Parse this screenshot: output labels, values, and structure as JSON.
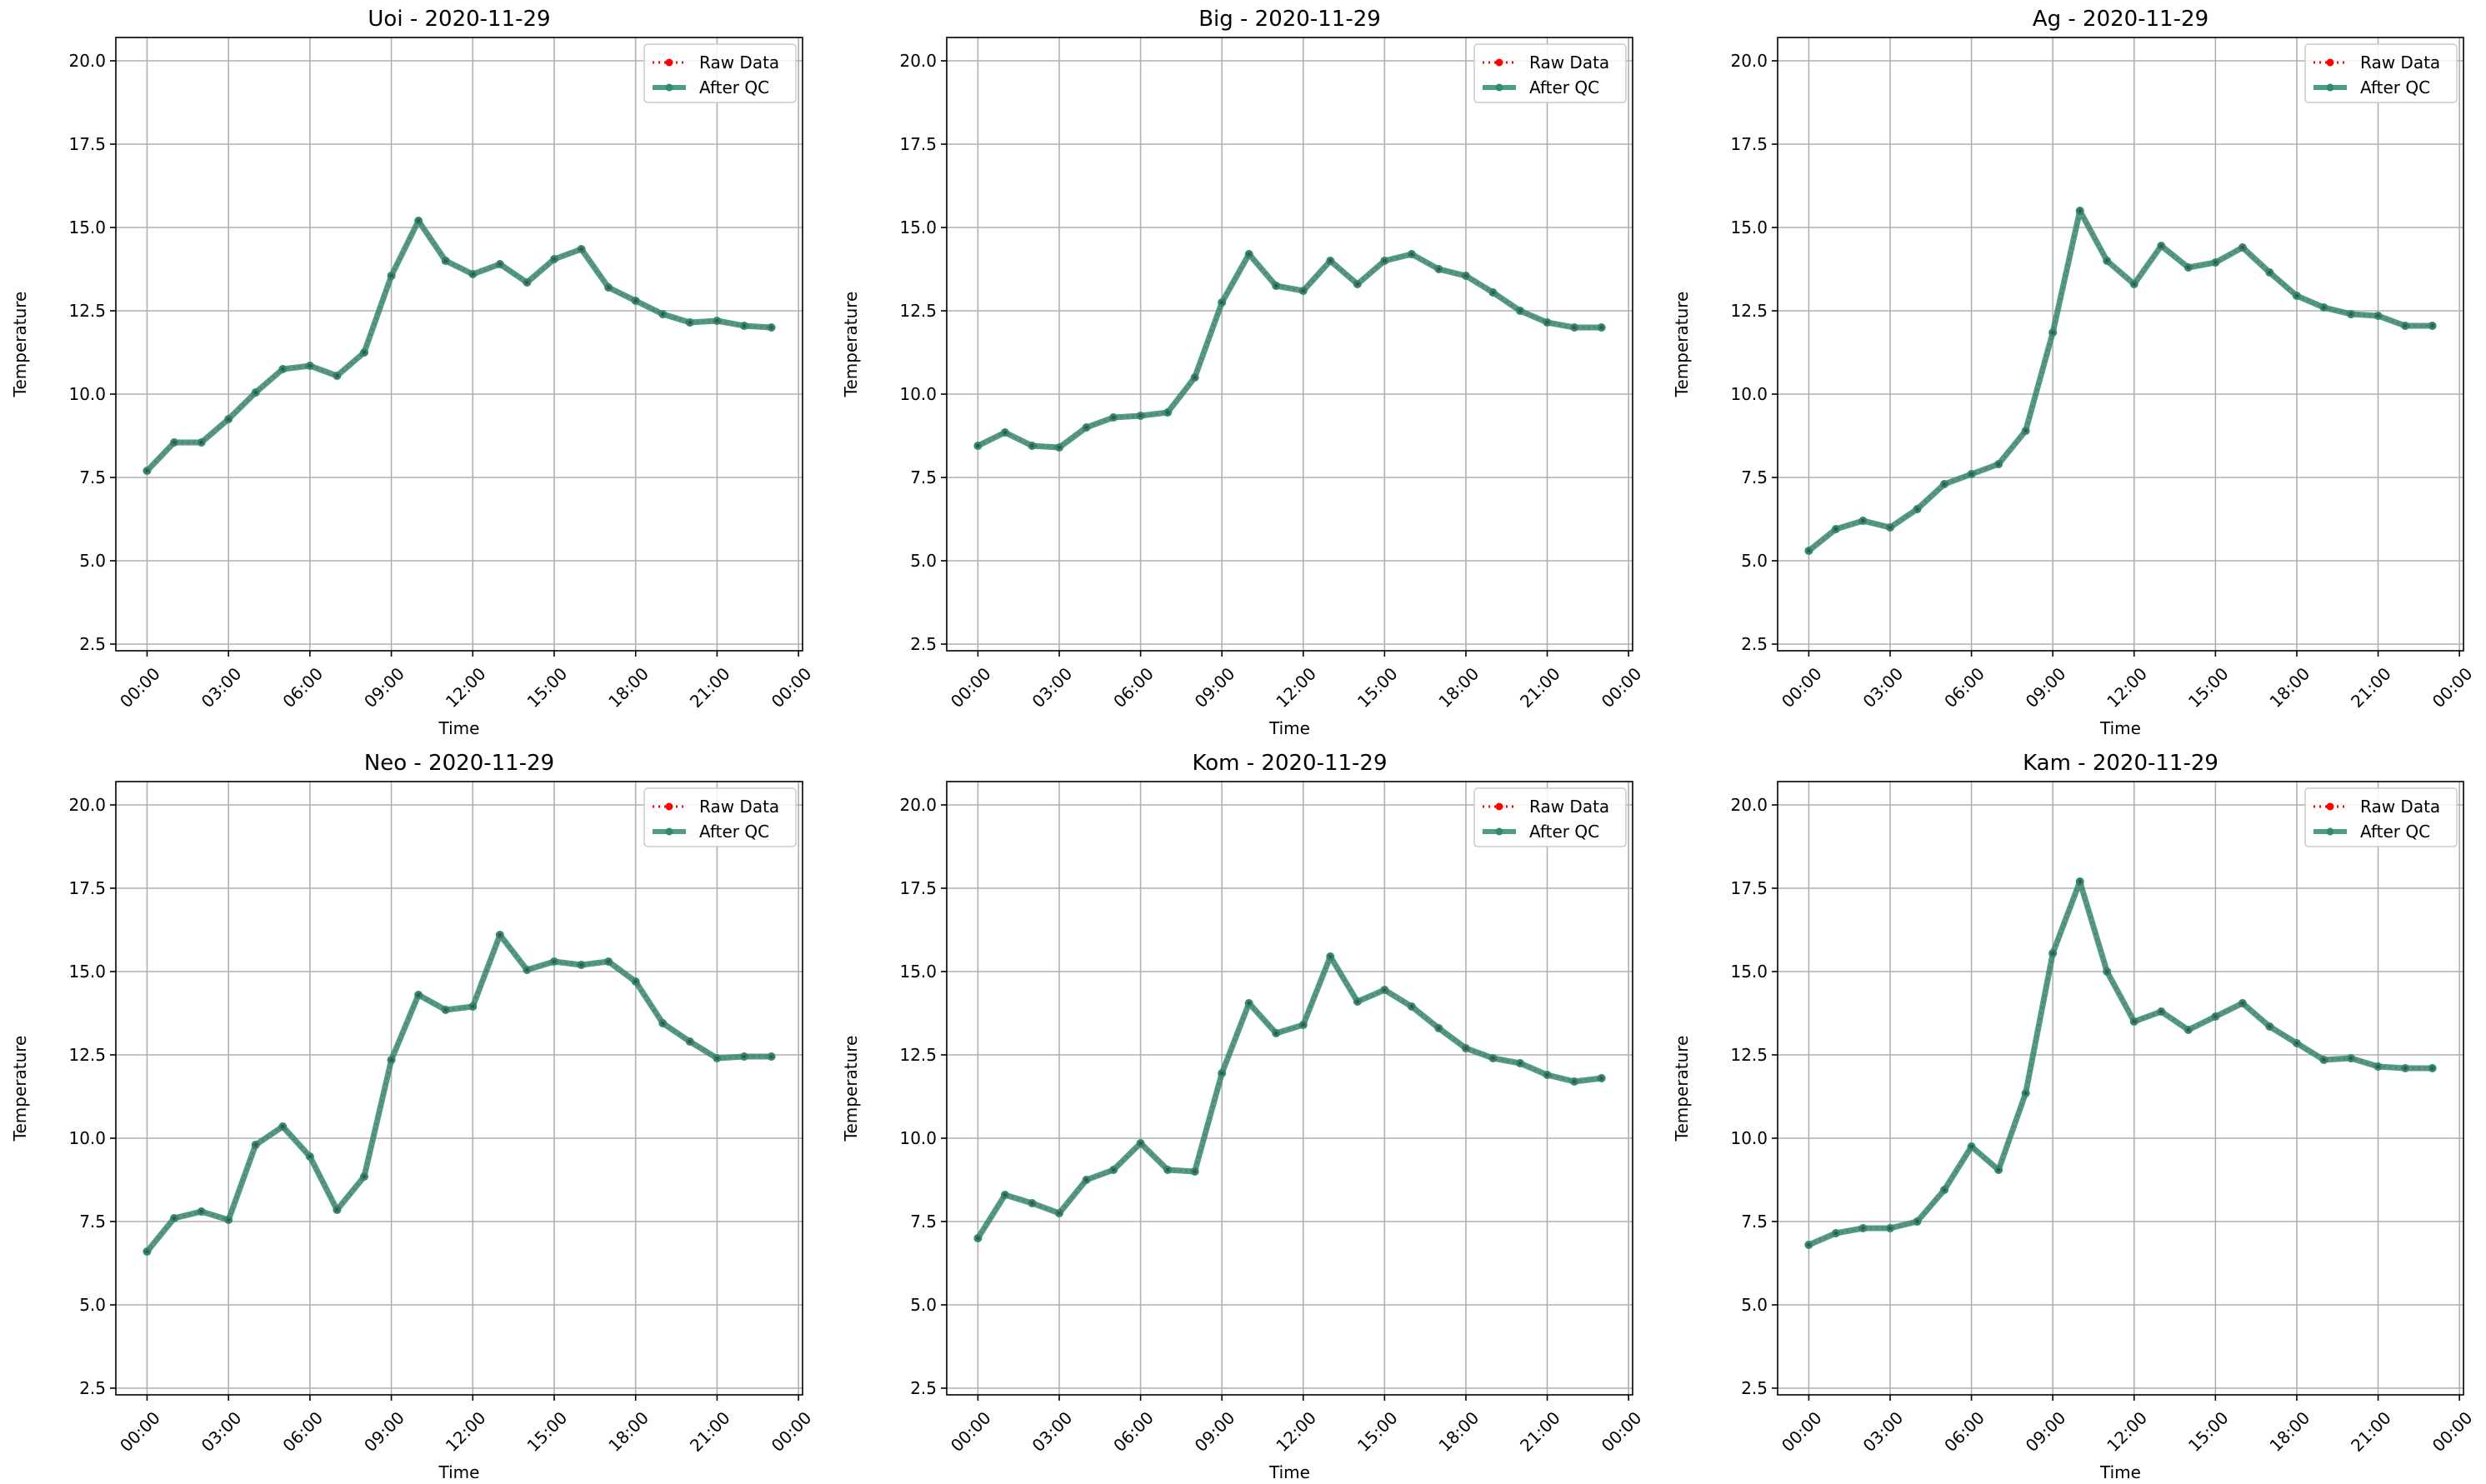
{
  "colors": {
    "raw": "#ff0000",
    "qc": "#2e8b6e",
    "grid": "#b0b0b0"
  },
  "legend": {
    "raw_label": "Raw Data",
    "qc_label": "After QC",
    "placement": "top-right"
  },
  "chart_data": [
    {
      "type": "line",
      "title": "Uoi - 2020-11-29",
      "xlabel": "Time",
      "ylabel": "Temperature",
      "ylim": [
        2.3,
        20.7
      ],
      "yticks": [
        "2.5",
        "5.0",
        "7.5",
        "10.0",
        "12.5",
        "15.0",
        "17.5",
        "20.0"
      ],
      "xticks": [
        "00:00",
        "03:00",
        "06:00",
        "09:00",
        "12:00",
        "15:00",
        "18:00",
        "21:00",
        "00:00"
      ],
      "grid": true,
      "x_hours": [
        0,
        1,
        2,
        3,
        4,
        5,
        6,
        7,
        8,
        9,
        10,
        11,
        12,
        13,
        14,
        15,
        16,
        17,
        18,
        19,
        20,
        21,
        22,
        23
      ],
      "series": [
        {
          "name": "Raw Data",
          "values": [
            7.7,
            8.55,
            8.55,
            9.25,
            10.05,
            10.75,
            10.85,
            10.55,
            11.25,
            13.55,
            15.2,
            14.0,
            13.6,
            13.9,
            13.35,
            14.05,
            14.35,
            13.2,
            12.8,
            12.4,
            12.15,
            12.2,
            12.05,
            12.0
          ]
        },
        {
          "name": "After QC",
          "values": [
            7.7,
            8.55,
            8.55,
            9.25,
            10.05,
            10.75,
            10.85,
            10.55,
            11.25,
            13.55,
            15.2,
            14.0,
            13.6,
            13.9,
            13.35,
            14.05,
            14.35,
            13.2,
            12.8,
            12.4,
            12.15,
            12.2,
            12.05,
            12.0
          ]
        }
      ]
    },
    {
      "type": "line",
      "title": "Big - 2020-11-29",
      "xlabel": "Time",
      "ylabel": "Temperature",
      "ylim": [
        2.3,
        20.7
      ],
      "yticks": [
        "2.5",
        "5.0",
        "7.5",
        "10.0",
        "12.5",
        "15.0",
        "17.5",
        "20.0"
      ],
      "xticks": [
        "00:00",
        "03:00",
        "06:00",
        "09:00",
        "12:00",
        "15:00",
        "18:00",
        "21:00",
        "00:00"
      ],
      "grid": true,
      "x_hours": [
        0,
        1,
        2,
        3,
        4,
        5,
        6,
        7,
        8,
        9,
        10,
        11,
        12,
        13,
        14,
        15,
        16,
        17,
        18,
        19,
        20,
        21,
        22,
        23
      ],
      "series": [
        {
          "name": "Raw Data",
          "values": [
            8.45,
            8.85,
            8.45,
            8.4,
            9.0,
            9.3,
            9.35,
            9.45,
            10.5,
            12.75,
            14.2,
            13.25,
            13.1,
            14.0,
            13.3,
            14.0,
            14.2,
            13.75,
            13.55,
            13.05,
            12.5,
            12.15,
            12.0,
            12.0
          ]
        },
        {
          "name": "After QC",
          "values": [
            8.45,
            8.85,
            8.45,
            8.4,
            9.0,
            9.3,
            9.35,
            9.45,
            10.5,
            12.75,
            14.2,
            13.25,
            13.1,
            14.0,
            13.3,
            14.0,
            14.2,
            13.75,
            13.55,
            13.05,
            12.5,
            12.15,
            12.0,
            12.0
          ]
        }
      ]
    },
    {
      "type": "line",
      "title": "Ag - 2020-11-29",
      "xlabel": "Time",
      "ylabel": "Temperature",
      "ylim": [
        2.3,
        20.7
      ],
      "yticks": [
        "2.5",
        "5.0",
        "7.5",
        "10.0",
        "12.5",
        "15.0",
        "17.5",
        "20.0"
      ],
      "xticks": [
        "00:00",
        "03:00",
        "06:00",
        "09:00",
        "12:00",
        "15:00",
        "18:00",
        "21:00",
        "00:00"
      ],
      "grid": true,
      "x_hours": [
        0,
        1,
        2,
        3,
        4,
        5,
        6,
        7,
        8,
        9,
        10,
        11,
        12,
        13,
        14,
        15,
        16,
        17,
        18,
        19,
        20,
        21,
        22,
        23
      ],
      "series": [
        {
          "name": "Raw Data",
          "values": [
            5.3,
            5.95,
            6.2,
            6.0,
            6.55,
            7.3,
            7.6,
            7.9,
            8.9,
            11.85,
            15.5,
            14.0,
            13.3,
            14.45,
            13.8,
            13.95,
            14.4,
            13.65,
            12.95,
            12.6,
            12.4,
            12.35,
            12.05,
            12.05
          ]
        },
        {
          "name": "After QC",
          "values": [
            5.3,
            5.95,
            6.2,
            6.0,
            6.55,
            7.3,
            7.6,
            7.9,
            8.9,
            11.85,
            15.5,
            14.0,
            13.3,
            14.45,
            13.8,
            13.95,
            14.4,
            13.65,
            12.95,
            12.6,
            12.4,
            12.35,
            12.05,
            12.05
          ]
        }
      ]
    },
    {
      "type": "line",
      "title": "Neo - 2020-11-29",
      "xlabel": "Time",
      "ylabel": "Temperature",
      "ylim": [
        2.3,
        20.7
      ],
      "yticks": [
        "2.5",
        "5.0",
        "7.5",
        "10.0",
        "12.5",
        "15.0",
        "17.5",
        "20.0"
      ],
      "xticks": [
        "00:00",
        "03:00",
        "06:00",
        "09:00",
        "12:00",
        "15:00",
        "18:00",
        "21:00",
        "00:00"
      ],
      "grid": true,
      "x_hours": [
        0,
        1,
        2,
        3,
        4,
        5,
        6,
        7,
        8,
        9,
        10,
        11,
        12,
        13,
        14,
        15,
        16,
        17,
        18,
        19,
        20,
        21,
        22,
        23
      ],
      "series": [
        {
          "name": "Raw Data",
          "values": [
            6.6,
            7.6,
            7.8,
            7.55,
            9.8,
            10.35,
            9.45,
            7.85,
            8.85,
            12.35,
            14.3,
            13.85,
            13.95,
            16.1,
            15.05,
            15.3,
            15.2,
            15.3,
            14.7,
            13.45,
            12.9,
            12.4,
            12.45,
            12.45
          ]
        },
        {
          "name": "After QC",
          "values": [
            6.6,
            7.6,
            7.8,
            7.55,
            9.8,
            10.35,
            9.45,
            7.85,
            8.85,
            12.35,
            14.3,
            13.85,
            13.95,
            16.1,
            15.05,
            15.3,
            15.2,
            15.3,
            14.7,
            13.45,
            12.9,
            12.4,
            12.45,
            12.45
          ]
        }
      ]
    },
    {
      "type": "line",
      "title": "Kom - 2020-11-29",
      "xlabel": "Time",
      "ylabel": "Temperature",
      "ylim": [
        2.3,
        20.7
      ],
      "yticks": [
        "2.5",
        "5.0",
        "7.5",
        "10.0",
        "12.5",
        "15.0",
        "17.5",
        "20.0"
      ],
      "xticks": [
        "00:00",
        "03:00",
        "06:00",
        "09:00",
        "12:00",
        "15:00",
        "18:00",
        "21:00",
        "00:00"
      ],
      "grid": true,
      "x_hours": [
        0,
        1,
        2,
        3,
        4,
        5,
        6,
        7,
        8,
        9,
        10,
        11,
        12,
        13,
        14,
        15,
        16,
        17,
        18,
        19,
        20,
        21,
        22,
        23
      ],
      "series": [
        {
          "name": "Raw Data",
          "values": [
            7.0,
            8.3,
            8.05,
            7.75,
            8.75,
            9.05,
            9.85,
            9.05,
            9.0,
            11.95,
            14.05,
            13.15,
            13.4,
            15.45,
            14.1,
            14.45,
            13.95,
            13.3,
            12.7,
            12.4,
            12.25,
            11.9,
            11.7,
            11.8
          ]
        },
        {
          "name": "After QC",
          "values": [
            7.0,
            8.3,
            8.05,
            7.75,
            8.75,
            9.05,
            9.85,
            9.05,
            9.0,
            11.95,
            14.05,
            13.15,
            13.4,
            15.45,
            14.1,
            14.45,
            13.95,
            13.3,
            12.7,
            12.4,
            12.25,
            11.9,
            11.7,
            11.8
          ]
        }
      ]
    },
    {
      "type": "line",
      "title": "Kam - 2020-11-29",
      "xlabel": "Time",
      "ylabel": "Temperature",
      "ylim": [
        2.3,
        20.7
      ],
      "yticks": [
        "2.5",
        "5.0",
        "7.5",
        "10.0",
        "12.5",
        "15.0",
        "17.5",
        "20.0"
      ],
      "xticks": [
        "00:00",
        "03:00",
        "06:00",
        "09:00",
        "12:00",
        "15:00",
        "18:00",
        "21:00",
        "00:00"
      ],
      "grid": true,
      "x_hours": [
        0,
        1,
        2,
        3,
        4,
        5,
        6,
        7,
        8,
        9,
        10,
        11,
        12,
        13,
        14,
        15,
        16,
        17,
        18,
        19,
        20,
        21,
        22,
        23
      ],
      "series": [
        {
          "name": "Raw Data",
          "values": [
            6.8,
            7.15,
            7.3,
            7.3,
            7.5,
            8.45,
            9.75,
            9.05,
            11.35,
            15.55,
            17.7,
            15.0,
            13.5,
            13.8,
            13.25,
            13.65,
            14.05,
            13.35,
            12.85,
            12.35,
            12.4,
            12.15,
            12.1,
            12.1
          ]
        },
        {
          "name": "After QC",
          "values": [
            6.8,
            7.15,
            7.3,
            7.3,
            7.5,
            8.45,
            9.75,
            9.05,
            11.35,
            15.55,
            17.7,
            15.0,
            13.5,
            13.8,
            13.25,
            13.65,
            14.05,
            13.35,
            12.85,
            12.35,
            12.4,
            12.15,
            12.1,
            12.1
          ]
        }
      ]
    }
  ]
}
